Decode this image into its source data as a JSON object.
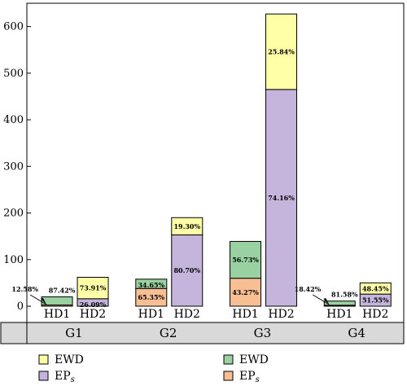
{
  "chart_data": {
    "type": "bar",
    "stacked": true,
    "ylim": [
      0,
      650
    ],
    "yticks": [
      0,
      100,
      200,
      300,
      400,
      500,
      600
    ],
    "groups": [
      {
        "name": "G1",
        "bars": [
          {
            "label": "HD1",
            "bottom": {
              "series": "EP_s",
              "value": 2.5,
              "pct": "12.58%"
            },
            "top": {
              "series": "EWD",
              "value": 17.5,
              "pct": "87.42%"
            }
          },
          {
            "label": "HD2",
            "bottom": {
              "series": "EP_s",
              "value": 16,
              "pct": "26.09%"
            },
            "top": {
              "series": "EWD",
              "value": 46,
              "pct": "73.91%"
            }
          }
        ]
      },
      {
        "name": "G2",
        "bars": [
          {
            "label": "HD1",
            "bottom": {
              "series": "EP_s",
              "value": 38,
              "pct": "65.35%"
            },
            "top": {
              "series": "EWD",
              "value": 20,
              "pct": "34.65%"
            }
          },
          {
            "label": "HD2",
            "bottom": {
              "series": "EP_s",
              "value": 153,
              "pct": "80.70%"
            },
            "top": {
              "series": "EWD",
              "value": 37,
              "pct": "19.30%"
            }
          }
        ]
      },
      {
        "name": "G3",
        "bars": [
          {
            "label": "HD1",
            "bottom": {
              "series": "EP_s",
              "value": 60,
              "pct": "43.27%"
            },
            "top": {
              "series": "EWD",
              "value": 79,
              "pct": "56.73%"
            }
          },
          {
            "label": "HD2",
            "bottom": {
              "series": "EP_s",
              "value": 465,
              "pct": "74.16%"
            },
            "top": {
              "series": "EWD",
              "value": 162,
              "pct": "25.84%"
            }
          }
        ]
      },
      {
        "name": "G4",
        "bars": [
          {
            "label": "HD1",
            "bottom": {
              "series": "EP_s",
              "value": 2,
              "pct": "18.42%"
            },
            "top": {
              "series": "EWD",
              "value": 9,
              "pct": "81.58%"
            }
          },
          {
            "label": "HD2",
            "bottom": {
              "series": "EP_s",
              "value": 26,
              "pct": "51.55%"
            },
            "top": {
              "series": "EWD",
              "value": 24,
              "pct": "48.45%"
            }
          }
        ]
      }
    ],
    "legend": [
      {
        "label": "EWD",
        "sub": "",
        "color": "#ffffa8",
        "column": "left"
      },
      {
        "label": "EWD",
        "sub": "",
        "color": "#99d1a0",
        "column": "right"
      },
      {
        "label": "EP",
        "sub": "s",
        "color": "#c5b4db",
        "column": "left"
      },
      {
        "label": "EP",
        "sub": "s",
        "color": "#f8bf94",
        "column": "right"
      }
    ],
    "colors": {
      "HD1_top": "#99d1a0",
      "HD1_bottom": "#f8bf94",
      "HD2_top": "#ffffa8",
      "HD2_bottom": "#c5b4db",
      "band": "#d9d9d9"
    }
  }
}
